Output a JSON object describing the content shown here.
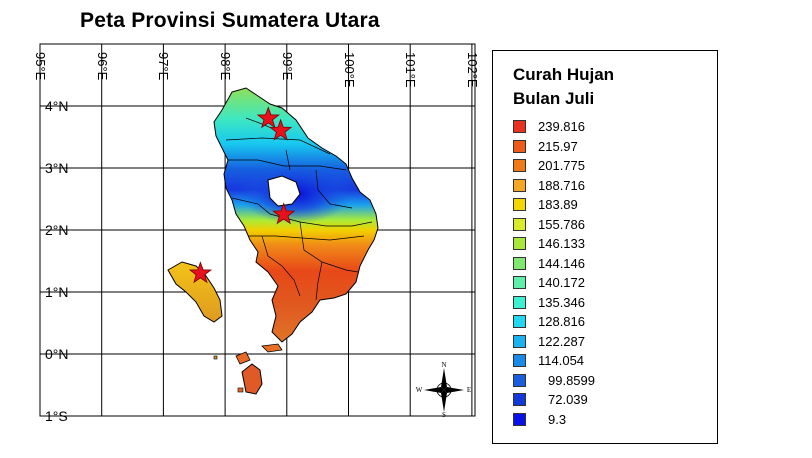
{
  "map": {
    "title": "Peta Provinsi Sumatera Utara",
    "longitude_labels": [
      "95°E",
      "96°E",
      "97°E",
      "98°E",
      "99°E",
      "100°E",
      "101°E",
      "102°E"
    ],
    "latitude_labels": [
      "4°N",
      "3°N",
      "2°N",
      "1°N",
      "0°N",
      "1°S"
    ],
    "markers": [
      {
        "type": "star",
        "color": "#e8101a",
        "lon": 98.7,
        "lat": 3.8
      },
      {
        "type": "star",
        "color": "#e8101a",
        "lon": 98.9,
        "lat": 3.6
      },
      {
        "type": "star",
        "color": "#e8101a",
        "lon": 98.95,
        "lat": 2.25
      },
      {
        "type": "star",
        "color": "#e8101a",
        "lon": 97.6,
        "lat": 1.3
      }
    ]
  },
  "legend": {
    "title_line1": "Curah Hujan",
    "title_line2": "Bulan Juli",
    "items": [
      {
        "value": "239.816",
        "color": "#e8321e"
      },
      {
        "value": "215.97",
        "color": "#ee5a1a"
      },
      {
        "value": "201.775",
        "color": "#f07a18"
      },
      {
        "value": "188.716",
        "color": "#f5a623"
      },
      {
        "value": "183.89",
        "color": "#f2d800"
      },
      {
        "value": "155.786",
        "color": "#d9ec2a"
      },
      {
        "value": "146.133",
        "color": "#a8e83a"
      },
      {
        "value": "144.146",
        "color": "#7ee870"
      },
      {
        "value": "140.172",
        "color": "#5fefaa"
      },
      {
        "value": "135.346",
        "color": "#3ef0cf"
      },
      {
        "value": "128.816",
        "color": "#22d8f0"
      },
      {
        "value": "122.287",
        "color": "#1ab2f0"
      },
      {
        "value": "114.054",
        "color": "#1a8ae8"
      },
      {
        "value": "99.8599",
        "color": "#1a5ee0"
      },
      {
        "value": "72.039",
        "color": "#1238d8"
      },
      {
        "value": "9.3",
        "color": "#0a10e8"
      }
    ]
  },
  "compass": {
    "n": "N",
    "s": "S",
    "e": "E",
    "w": "W"
  }
}
